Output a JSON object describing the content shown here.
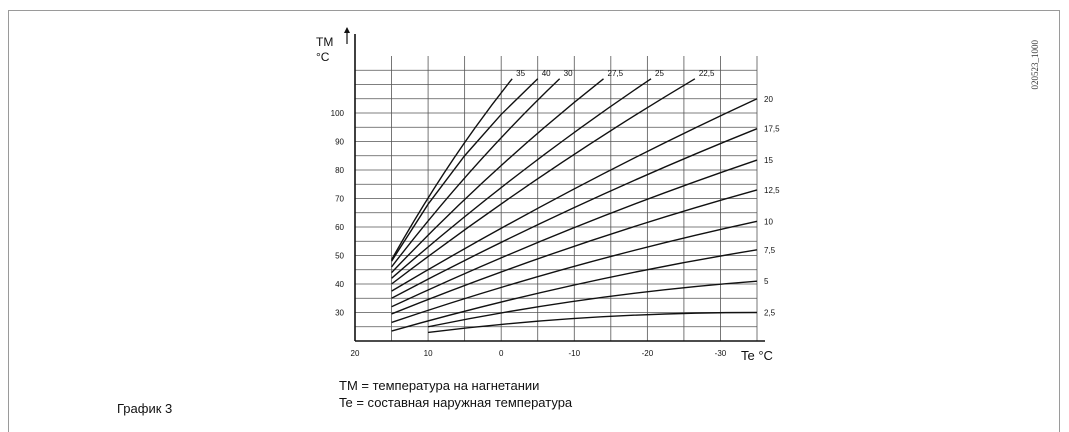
{
  "figure": {
    "id_text": "020523_1000",
    "caption": "График 3",
    "legend_lines": [
      "TM = температура на нагнетании",
      "Te = составная наружная температура"
    ]
  },
  "chart_data": {
    "type": "line",
    "ylabel": "TM",
    "ylabel_unit": "°C",
    "xlabel": "Te °C",
    "x_reversed": true,
    "xlim": [
      20,
      -35
    ],
    "ylim": [
      20,
      120
    ],
    "x_ticks": [
      20,
      10,
      0,
      -10,
      -20,
      -30
    ],
    "y_ticks": [
      30,
      40,
      50,
      60,
      70,
      80,
      90,
      100
    ],
    "grid": true,
    "series": [
      {
        "name": "2,5",
        "x": [
          10,
          -35
        ],
        "y": [
          23,
          30
        ]
      },
      {
        "name": "5",
        "x": [
          10,
          -35
        ],
        "y": [
          25,
          41
        ]
      },
      {
        "name": "7,5",
        "x": [
          15,
          -35
        ],
        "y": [
          23.5,
          52
        ]
      },
      {
        "name": "10",
        "x": [
          15,
          -35
        ],
        "y": [
          26.5,
          62
        ]
      },
      {
        "name": "12,5",
        "x": [
          15,
          -35
        ],
        "y": [
          29.5,
          73
        ]
      },
      {
        "name": "15",
        "x": [
          15,
          -35
        ],
        "y": [
          32,
          83.5
        ]
      },
      {
        "name": "17,5",
        "x": [
          15,
          -35
        ],
        "y": [
          35,
          94.5
        ]
      },
      {
        "name": "20",
        "x": [
          15,
          -35
        ],
        "y": [
          37.5,
          105
        ]
      },
      {
        "name": "22,5",
        "x": [
          15,
          -26.5
        ],
        "y": [
          40,
          112
        ]
      },
      {
        "name": "25",
        "x": [
          15,
          -20.5
        ],
        "y": [
          42,
          112
        ]
      },
      {
        "name": "27,5",
        "x": [
          15,
          -14
        ],
        "y": [
          44,
          112
        ]
      },
      {
        "name": "30",
        "x": [
          15,
          -8
        ],
        "y": [
          46,
          112
        ]
      },
      {
        "name": "35",
        "x": [
          15,
          -1.5
        ],
        "y": [
          48.5,
          112
        ]
      },
      {
        "name": "40",
        "x": [
          15,
          10,
          5,
          0,
          -5
        ],
        "y": [
          48,
          68,
          85,
          99.5,
          112
        ]
      }
    ],
    "label_positions": {
      "2,5": "right",
      "5": "right",
      "7,5": "right",
      "10": "right",
      "12,5": "right",
      "15": "right",
      "17,5": "right",
      "20": "right",
      "22,5": "top",
      "25": "top",
      "27,5": "top",
      "30": "top",
      "35": "top",
      "40": "top"
    }
  }
}
